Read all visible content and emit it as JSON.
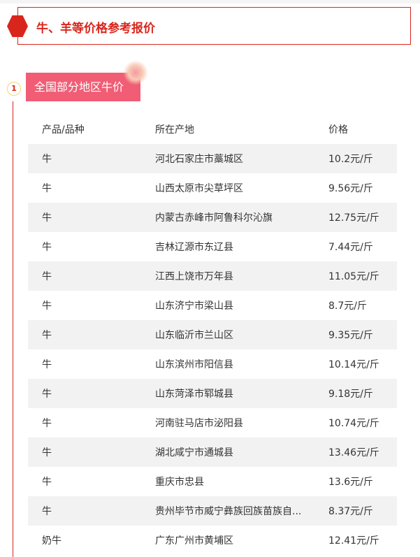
{
  "title": "牛、羊等价格参考报价",
  "section": {
    "number": "1",
    "title": "全国部分地区牛价"
  },
  "table": {
    "headers": [
      "产品/品种",
      "所在产地",
      "价格"
    ],
    "rows": [
      [
        "牛",
        "河北石家庄市藁城区",
        "10.2元/斤"
      ],
      [
        "牛",
        "山西太原市尖草坪区",
        "9.56元/斤"
      ],
      [
        "牛",
        "内蒙古赤峰市阿鲁科尔沁旗",
        "12.75元/斤"
      ],
      [
        "牛",
        "吉林辽源市东辽县",
        "7.44元/斤"
      ],
      [
        "牛",
        "江西上饶市万年县",
        "11.05元/斤"
      ],
      [
        "牛",
        "山东济宁市梁山县",
        "8.7元/斤"
      ],
      [
        "牛",
        "山东临沂市兰山区",
        "9.35元/斤"
      ],
      [
        "牛",
        "山东滨州市阳信县",
        "10.14元/斤"
      ],
      [
        "牛",
        "山东菏泽市郓城县",
        "9.18元/斤"
      ],
      [
        "牛",
        "河南驻马店市泌阳县",
        "10.74元/斤"
      ],
      [
        "牛",
        "湖北咸宁市通城县",
        "13.46元/斤"
      ],
      [
        "牛",
        "重庆市忠县",
        "13.6元/斤"
      ],
      [
        "牛",
        "贵州毕节市威宁彝族回族苗族自...",
        "8.37元/斤"
      ],
      [
        "奶牛",
        "广东广州市黄埔区",
        "12.41元/斤"
      ]
    ]
  },
  "colors": {
    "accent": "#d9261c",
    "section_bg": "#f05d75",
    "row_alt": "#f2f2f2"
  }
}
